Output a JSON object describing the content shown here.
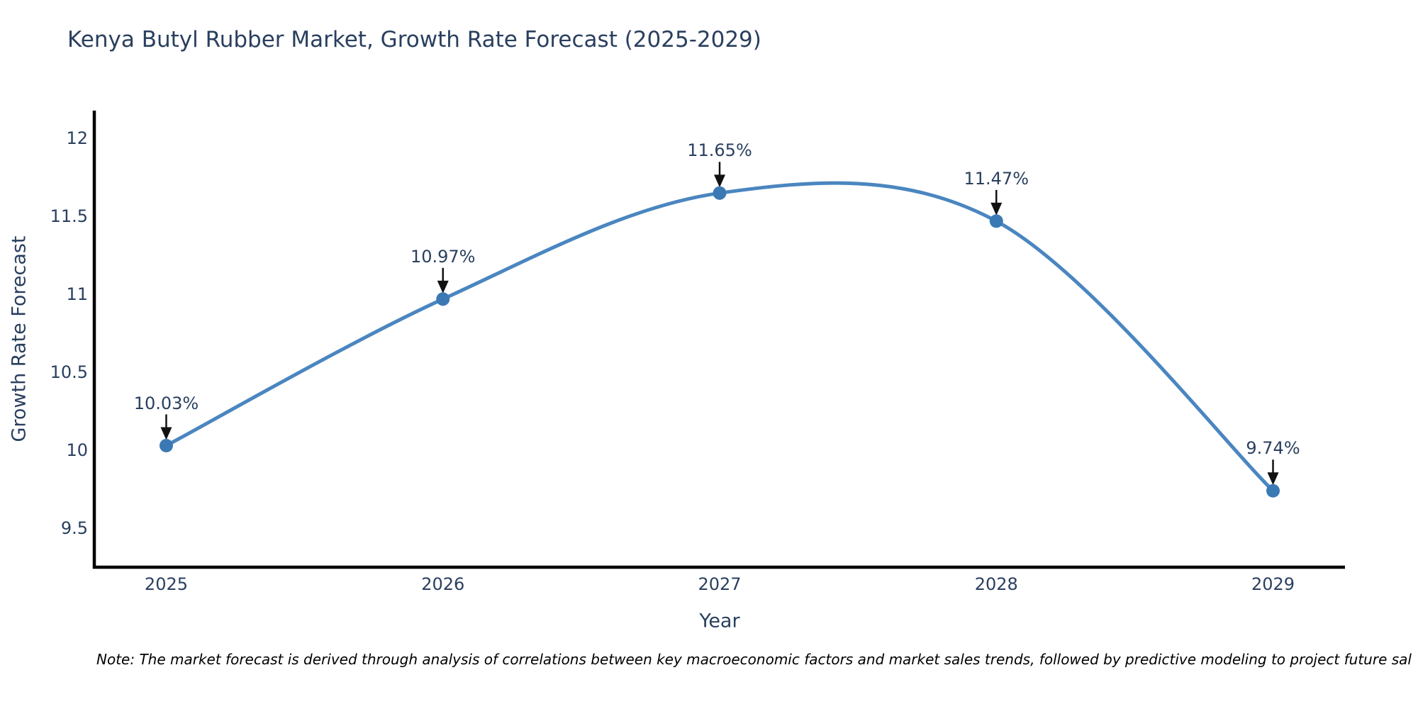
{
  "page": {
    "note": "Note: The market forecast is derived through analysis of correlations between key macroeconomic factors and market sales trends, followed by predictive modeling to project future sal"
  },
  "chart_data": {
    "type": "line",
    "title": "Kenya Butyl Rubber Market, Growth Rate Forecast (2025-2029)",
    "xlabel": "Year",
    "ylabel": "Growth Rate Forecast",
    "x": [
      2025,
      2026,
      2027,
      2028,
      2029
    ],
    "values": [
      10.03,
      10.97,
      11.65,
      11.47,
      9.74
    ],
    "point_labels": [
      "10.03%",
      "10.97%",
      "11.65%",
      "11.47%",
      "9.74%"
    ],
    "x_ticks": [
      "2025",
      "2026",
      "2027",
      "2028",
      "2029"
    ],
    "y_ticks": [
      12,
      11.5,
      11,
      10.5,
      10,
      9.5
    ],
    "x_range": [
      2024.74,
      2029.26
    ],
    "y_range": [
      9.25,
      12.17
    ],
    "line_shape": "spline",
    "grid": false,
    "legend": "none",
    "colors": {
      "line": "#4a86c0",
      "marker": "#3b79b4",
      "axis": "#000000",
      "text": "#2a3f5f",
      "arrow": "#111111",
      "note_text": "#000000",
      "background": "#ffffff"
    }
  }
}
